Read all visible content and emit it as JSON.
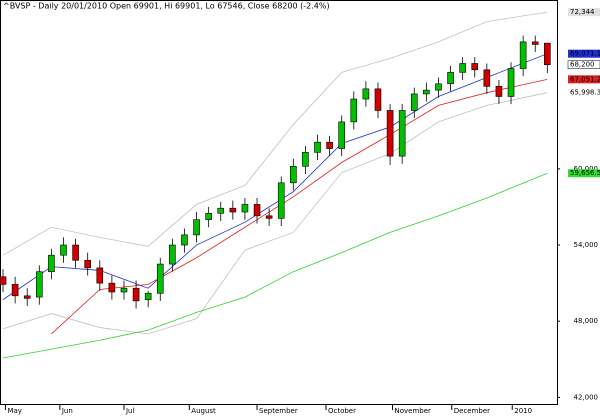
{
  "chart_data": {
    "type": "candlestick",
    "title": "^BVSP - Daily 20/01/2010 Open 69901, Hi 69901, Lo 67546, Close 68200 (-2.4%)",
    "xlim": [
      -0.25,
      45.8
    ],
    "ylim": [
      41400,
      73300
    ],
    "yticks": [
      {
        "value": 42000,
        "label": "42,000"
      },
      {
        "value": 48000,
        "label": "48,000"
      },
      {
        "value": 54000,
        "label": "54,000"
      },
      {
        "value": 60000,
        "label": "60,000"
      }
    ],
    "xticks": [
      {
        "value": 0.2,
        "label": "May"
      },
      {
        "value": 4.7,
        "label": "Jun"
      },
      {
        "value": 10,
        "label": "Jul"
      },
      {
        "value": 15.4,
        "label": "August"
      },
      {
        "value": 21,
        "label": "September"
      },
      {
        "value": 26.7,
        "label": "October"
      },
      {
        "value": 32.2,
        "label": "November"
      },
      {
        "value": 37.1,
        "label": "December"
      },
      {
        "value": 42.1,
        "label": "2010"
      }
    ],
    "up_color": "#00c000",
    "down_color": "#d00000",
    "open": [
      51500,
      50900,
      50000,
      49900,
      51900,
      53200,
      54000,
      52800,
      52200,
      51000,
      50300,
      50600,
      49700,
      50200,
      52500,
      54000,
      54800,
      56000,
      56500,
      56900,
      56600,
      57200,
      56300,
      56100,
      58900,
      60200,
      61300,
      62100,
      61600,
      63700,
      65500,
      66300,
      64600,
      61000,
      64600,
      65900,
      66200,
      66700,
      67600,
      68300,
      67800,
      66500,
      65700,
      67900,
      70000,
      69901
    ],
    "high": [
      52100,
      51500,
      50600,
      52400,
      53700,
      54600,
      54500,
      53400,
      52800,
      51600,
      51200,
      51200,
      50400,
      53000,
      54500,
      55300,
      56600,
      57000,
      57400,
      57500,
      57700,
      57700,
      56900,
      59400,
      60800,
      61800,
      62700,
      62600,
      64200,
      66100,
      66900,
      66800,
      65100,
      65100,
      66400,
      66800,
      67200,
      68100,
      68800,
      68800,
      68300,
      67000,
      68400,
      70500,
      70500,
      69901
    ],
    "low": [
      50300,
      49400,
      49200,
      49300,
      51300,
      52600,
      52200,
      51600,
      50400,
      49700,
      49700,
      49000,
      49100,
      49600,
      51900,
      53400,
      54200,
      55400,
      55900,
      56000,
      56000,
      55700,
      55500,
      55500,
      58300,
      59600,
      60700,
      61000,
      61000,
      63100,
      64900,
      64000,
      60300,
      60400,
      64000,
      65300,
      65600,
      66100,
      67000,
      67200,
      65900,
      65100,
      65100,
      67300,
      69200,
      67546
    ],
    "close": [
      50900,
      50000,
      49800,
      51900,
      53200,
      54000,
      52800,
      52200,
      51000,
      50300,
      50600,
      49600,
      50200,
      52500,
      54000,
      54800,
      56000,
      56500,
      56900,
      56600,
      57200,
      56300,
      56100,
      58900,
      60200,
      61300,
      62100,
      61600,
      63700,
      65500,
      66300,
      64600,
      61000,
      64600,
      65900,
      66200,
      66700,
      67600,
      68300,
      67800,
      66500,
      65700,
      67900,
      70000,
      69800,
      68200
    ],
    "close_label": "68,200",
    "line_x": [
      0,
      4,
      8,
      12,
      16,
      20,
      24,
      28,
      32,
      36,
      40,
      45
    ],
    "lines": [
      {
        "color": "#c0c0c0",
        "label_bg": "#e0e0e0",
        "label_fg": "#000000",
        "values": [
          53200,
          55400,
          54600,
          53900,
          57200,
          58700,
          63500,
          67600,
          68700,
          70000,
          71600,
          72344
        ],
        "value_labels": [
          null,
          null,
          null,
          null,
          null,
          null,
          null,
          null,
          null,
          null,
          null,
          "72,344"
        ]
      },
      {
        "color": "#c0c0c0",
        "label_bg": "#ffffff",
        "label_fg": "#000000",
        "values": [
          47400,
          48600,
          47500,
          47000,
          48200,
          53600,
          55000,
          59700,
          61200,
          63700,
          65000,
          65998.3
        ],
        "value_labels": [
          null,
          null,
          null,
          null,
          null,
          null,
          null,
          null,
          null,
          null,
          null,
          "65,998.3"
        ]
      },
      {
        "color": "#1f2fd0",
        "label_bg": "#1f2fd0",
        "label_fg": "#ffffff",
        "values": [
          49700,
          52300,
          52000,
          50600,
          54000,
          55800,
          58200,
          62000,
          63300,
          65700,
          67200,
          69071.1
        ],
        "value_labels": [
          null,
          null,
          null,
          null,
          null,
          null,
          null,
          null,
          null,
          null,
          null,
          "69,071.1"
        ]
      },
      {
        "color": "#e02020",
        "label_bg": "#e02020",
        "label_fg": "#600000",
        "values": [
          null,
          47000,
          50500,
          50900,
          53000,
          55400,
          57800,
          60500,
          62700,
          65000,
          66000,
          67051.2
        ],
        "value_labels": [
          null,
          null,
          null,
          null,
          null,
          null,
          null,
          null,
          null,
          null,
          null,
          "67,051.2"
        ]
      },
      {
        "color": "#30d030",
        "label_bg": "#30e030",
        "label_fg": "#000000",
        "values": [
          45100,
          45800,
          46500,
          47300,
          48700,
          49900,
          51900,
          53400,
          55000,
          56300,
          57700,
          59656.5
        ],
        "value_labels": [
          null,
          null,
          null,
          null,
          null,
          null,
          null,
          null,
          null,
          null,
          null,
          "59,656.5"
        ]
      }
    ]
  }
}
